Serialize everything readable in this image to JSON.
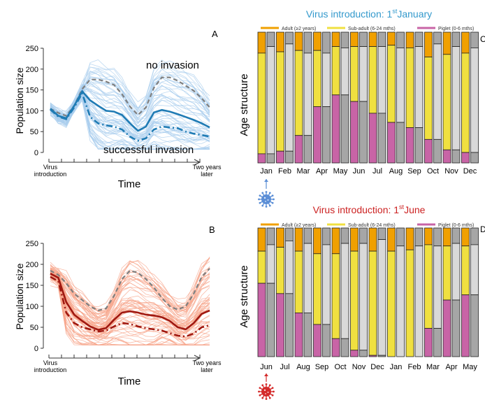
{
  "chart_data": [
    {
      "type": "line",
      "panel_label": "A",
      "ylabel": "Population size",
      "xlabel": "Time",
      "x_tick_start": "Virus introduction",
      "x_tick_start_lines": [
        "Virus",
        "introduction"
      ],
      "x_tick_end_lines": [
        "Two years",
        "later"
      ],
      "ylim": [
        0,
        250
      ],
      "yticks": [
        0,
        50,
        100,
        150,
        200,
        250
      ],
      "x": [
        0,
        0.05,
        0.1,
        0.15,
        0.2,
        0.25,
        0.3,
        0.35,
        0.4,
        0.45,
        0.5,
        0.55,
        0.6,
        0.65,
        0.7,
        0.75,
        0.8,
        0.85,
        0.9,
        0.95,
        1.0
      ],
      "series": [
        {
          "name": "no invasion",
          "style": "dashed",
          "color": "#7f7f7f",
          "values": [
            105,
            95,
            88,
            112,
            152,
            175,
            175,
            170,
            162,
            140,
            110,
            90,
            108,
            155,
            180,
            180,
            172,
            160,
            148,
            130,
            108
          ]
        },
        {
          "style": "solid",
          "color": "#1f7bb4",
          "values": [
            105,
            88,
            82,
            112,
            147,
            125,
            112,
            100,
            98,
            90,
            70,
            52,
            62,
            96,
            102,
            98,
            92,
            85,
            78,
            70,
            60
          ]
        },
        {
          "name": "successful invasion",
          "style": "dashdot",
          "color": "#1f7bb4",
          "values": [
            103,
            86,
            80,
            108,
            142,
            85,
            70,
            65,
            62,
            55,
            38,
            28,
            34,
            55,
            62,
            60,
            58,
            50,
            45,
            42,
            38
          ]
        }
      ],
      "band_color": "#a9cdee",
      "annotations": [
        "no invasion",
        "successful invasion"
      ]
    },
    {
      "type": "line",
      "panel_label": "B",
      "ylabel": "Population size",
      "xlabel": "Time",
      "x_tick_start_lines": [
        "Virus",
        "introduction"
      ],
      "x_tick_end_lines": [
        "Two years",
        "later"
      ],
      "ylim": [
        0,
        250
      ],
      "yticks": [
        0,
        50,
        100,
        150,
        200,
        250
      ],
      "x": [
        0,
        0.05,
        0.1,
        0.15,
        0.2,
        0.25,
        0.3,
        0.35,
        0.4,
        0.45,
        0.5,
        0.55,
        0.6,
        0.65,
        0.7,
        0.75,
        0.8,
        0.85,
        0.9,
        0.95,
        1.0
      ],
      "series": [
        {
          "style": "dashed",
          "color": "#7f7f7f",
          "values": [
            185,
            175,
            155,
            130,
            115,
            100,
            90,
            95,
            125,
            165,
            185,
            180,
            165,
            145,
            120,
            100,
            92,
            100,
            130,
            170,
            190
          ]
        },
        {
          "style": "solid",
          "color": "#a01810",
          "values": [
            178,
            168,
            110,
            80,
            65,
            52,
            44,
            48,
            68,
            85,
            88,
            85,
            80,
            78,
            74,
            65,
            50,
            45,
            60,
            82,
            90
          ]
        },
        {
          "style": "dashdot",
          "color": "#a01810",
          "values": [
            170,
            160,
            85,
            60,
            50,
            45,
            40,
            42,
            52,
            60,
            58,
            52,
            48,
            45,
            42,
            36,
            30,
            28,
            35,
            50,
            55
          ]
        }
      ],
      "band_color": "#f7a48a"
    },
    {
      "type": "bar",
      "stacked": true,
      "panel_label": "C",
      "title_main": "Virus introduction: 1",
      "title_sup": "st",
      "title_end": "January",
      "ylabel": "Age structure",
      "legend": [
        "Adult (≥2 years)",
        "Sub-adult (6-24 mths)",
        "Piglet (0-6 mths)"
      ],
      "legend_colors": [
        "#f0a000",
        "#f0e040",
        "#c864a6"
      ],
      "categories": [
        "Jan",
        "Feb",
        "Mar",
        "Apr",
        "May",
        "Jun",
        "Jul",
        "Aug",
        "Sep",
        "Oct",
        "Nov",
        "Dec"
      ],
      "left_bars": [
        {
          "piglet": 0.07,
          "subadult": 0.77,
          "adult": 0.16
        },
        {
          "piglet": 0.09,
          "subadult": 0.76,
          "adult": 0.15
        },
        {
          "piglet": 0.21,
          "subadult": 0.65,
          "adult": 0.14
        },
        {
          "piglet": 0.43,
          "subadult": 0.43,
          "adult": 0.14
        },
        {
          "piglet": 0.52,
          "subadult": 0.37,
          "adult": 0.11
        },
        {
          "piglet": 0.47,
          "subadult": 0.42,
          "adult": 0.11
        },
        {
          "piglet": 0.38,
          "subadult": 0.51,
          "adult": 0.11
        },
        {
          "piglet": 0.31,
          "subadult": 0.59,
          "adult": 0.1
        },
        {
          "piglet": 0.27,
          "subadult": 0.61,
          "adult": 0.12
        },
        {
          "piglet": 0.18,
          "subadult": 0.63,
          "adult": 0.19
        },
        {
          "piglet": 0.1,
          "subadult": 0.73,
          "adult": 0.17
        },
        {
          "piglet": 0.08,
          "subadult": 0.76,
          "adult": 0.16
        }
      ],
      "right_bars": [
        0.89,
        0.91,
        0.84,
        0.84,
        0.88,
        0.89,
        0.89,
        0.88,
        0.89,
        0.91,
        0.89,
        0.88
      ],
      "colors": {
        "adult": "#f0a000",
        "subadult": "#f0e040",
        "piglet": "#c864a6",
        "gray_light": "#d9d9d9",
        "gray_dark": "#a6a6a6"
      }
    },
    {
      "type": "bar",
      "stacked": true,
      "panel_label": "D",
      "title_main": "Virus introduction: 1",
      "title_sup": "st",
      "title_end": "June",
      "ylabel": "Age structure",
      "legend": [
        "Adult (≥2 years)",
        "Sub-adult (6-24 mths)",
        "Piglet (0-6 mths)"
      ],
      "legend_colors": [
        "#f0a000",
        "#f0e040",
        "#c864a6"
      ],
      "categories": [
        "Jun",
        "Jul",
        "Aug",
        "Sep",
        "Oct",
        "Nov",
        "Dec",
        "Jan",
        "Feb",
        "Mar",
        "Apr",
        "May"
      ],
      "left_bars": [
        {
          "piglet": 0.57,
          "subadult": 0.25,
          "adult": 0.18
        },
        {
          "piglet": 0.49,
          "subadult": 0.36,
          "adult": 0.15
        },
        {
          "piglet": 0.34,
          "subadult": 0.48,
          "adult": 0.18
        },
        {
          "piglet": 0.25,
          "subadult": 0.55,
          "adult": 0.2
        },
        {
          "piglet": 0.14,
          "subadult": 0.66,
          "adult": 0.2
        },
        {
          "piglet": 0.05,
          "subadult": 0.77,
          "adult": 0.18
        },
        {
          "piglet": 0.01,
          "subadult": 0.81,
          "adult": 0.18
        },
        {
          "piglet": 0.0,
          "subadult": 0.82,
          "adult": 0.18
        },
        {
          "piglet": 0.0,
          "subadult": 0.83,
          "adult": 0.17
        },
        {
          "piglet": 0.22,
          "subadult": 0.65,
          "adult": 0.13
        },
        {
          "piglet": 0.44,
          "subadult": 0.42,
          "adult": 0.14
        },
        {
          "piglet": 0.48,
          "subadult": 0.38,
          "adult": 0.14
        }
      ],
      "right_bars": [
        0.87,
        0.9,
        0.88,
        0.87,
        0.88,
        0.88,
        0.91,
        0.86,
        0.86,
        0.86,
        0.88,
        0.87
      ],
      "colors": {
        "adult": "#f0a000",
        "subadult": "#f0e040",
        "piglet": "#c864a6",
        "gray_light": "#d9d9d9",
        "gray_dark": "#a6a6a6"
      }
    }
  ],
  "colors": {
    "blue_title": "#3399cc",
    "red_title": "#cc2222",
    "blue_virus": "#5b8ed6",
    "red_virus": "#d42a2a"
  },
  "icons": {
    "top_virus": "blue-virus-icon",
    "bottom_virus": "red-virus-icon"
  }
}
